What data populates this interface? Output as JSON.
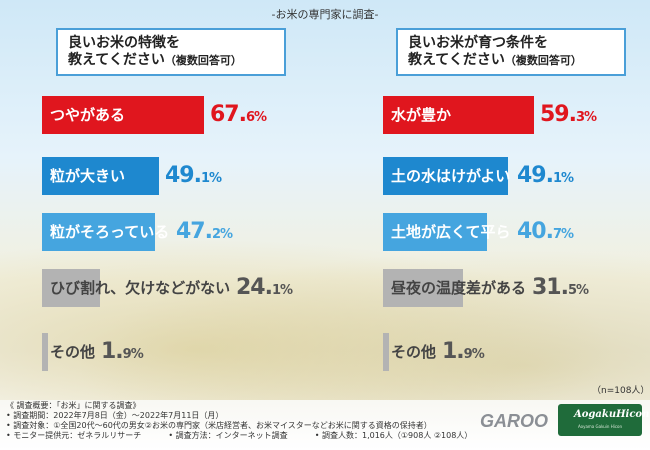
{
  "survey_title": "-お米の専門家に調査-",
  "chart_data": [
    {
      "type": "bar",
      "title_line1": "良いお米の特徴を",
      "title_line2": "教えてください",
      "title_suffix": "（複数回答可）",
      "categories": [
        "つやがある",
        "粒が大きい",
        "粒がそろっている",
        "ひび割れ、欠けなどがない",
        "その他"
      ],
      "values": [
        67.6,
        49.1,
        47.2,
        24.1,
        1.9
      ],
      "value_big": [
        "67.",
        "49.",
        "47.",
        "24.",
        "1."
      ],
      "value_small": [
        "6%",
        "1%",
        "2%",
        "1%",
        "9%"
      ],
      "colors": [
        "#e0161e",
        "#1e88cf",
        "#45a5df",
        "#b3b3b3",
        "#b3b3b3"
      ],
      "label_colors": [
        "#ffffff",
        "#ffffff",
        "#ffffff",
        "#444444",
        "#444444"
      ],
      "value_colors": [
        "#e0161e",
        "#1e88cf",
        "#45a5df",
        "#555555",
        "#555555"
      ],
      "xlim": [
        0,
        100
      ]
    },
    {
      "type": "bar",
      "title_line1": "良いお米が育つ条件を",
      "title_line2": "教えてください",
      "title_suffix": "（複数回答可）",
      "categories": [
        "水が豊か",
        "土の水はけがよい",
        "土地が広くて平ら",
        "昼夜の温度差がある",
        "その他"
      ],
      "values": [
        59.3,
        49.1,
        40.7,
        31.5,
        1.9
      ],
      "value_big": [
        "59.",
        "49.",
        "40.",
        "31.",
        "1."
      ],
      "value_small": [
        "3%",
        "1%",
        "7%",
        "5%",
        "9%"
      ],
      "colors": [
        "#e0161e",
        "#1e88cf",
        "#45a5df",
        "#b3b3b3",
        "#b3b3b3"
      ],
      "label_colors": [
        "#ffffff",
        "#ffffff",
        "#ffffff",
        "#444444",
        "#444444"
      ],
      "value_colors": [
        "#e0161e",
        "#1e88cf",
        "#45a5df",
        "#555555",
        "#555555"
      ],
      "xlim": [
        0,
        100
      ]
    }
  ],
  "n_note": "（n=108人）",
  "overview": {
    "heading": "《 調査概要：「お米」に関する調査》",
    "period": "• 調査期間：2022年7月8日（金）〜2022年7月11日（月）",
    "target": "• 調査対象：①全国20代〜60代の男女②お米の専門家（米店経営者、お米マイスターなどお米に関する資格の保持者）",
    "monitor": "• モニター提供元：ゼネラルリサーチ",
    "method": "• 調査方法：インターネット調査",
    "count": "• 調査人数：1,016人（①908人 ②108人）"
  },
  "logos": {
    "garoo": "GAROO",
    "aoga": "AogakuHicon",
    "aoga_sub": "Aoyama Gakuin Hicon",
    "garoo_color": "#8b8f95",
    "aoga_color": "#1f6b3a"
  }
}
